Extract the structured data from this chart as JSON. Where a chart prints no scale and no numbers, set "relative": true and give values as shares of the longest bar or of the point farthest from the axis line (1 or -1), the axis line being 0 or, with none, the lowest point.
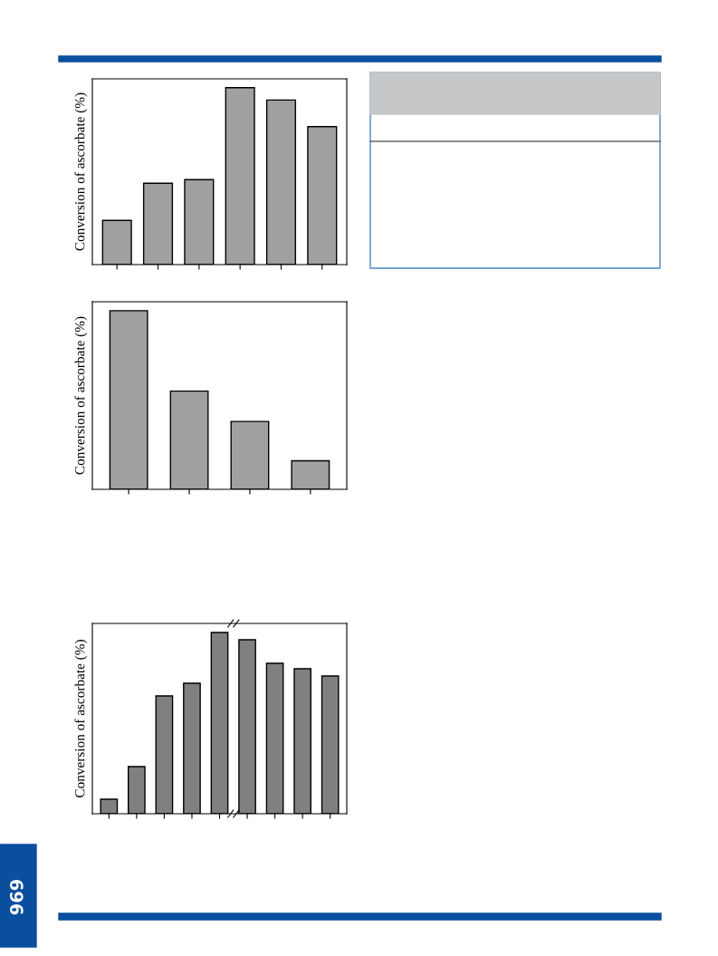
{
  "chart_data": [
    {
      "type": "bar",
      "relative": true,
      "ylabel": "Conversion of ascorbate (%)",
      "categories": [
        null,
        null,
        null,
        null,
        null,
        null
      ],
      "values": [
        0.25,
        0.46,
        0.48,
        1,
        0.93,
        0.78
      ],
      "color": "#a0a0a0",
      "grid": false,
      "annotations": [
        "969"
      ]
    },
    {
      "type": "bar",
      "relative": true,
      "ylabel": "Conversion of ascorbate (%)",
      "categories": [
        null,
        null,
        null,
        null
      ],
      "values": [
        1,
        0.55,
        0.38,
        0.16
      ],
      "color": "#a0a0a0",
      "grid": false
    },
    {
      "type": "bar",
      "relative": true,
      "ylabel": "Conversion of ascorbate (%)",
      "categories": [
        null,
        null,
        null,
        null,
        null,
        null,
        null,
        null,
        null
      ],
      "values": [
        0.08,
        0.26,
        0.65,
        0.72,
        1,
        0.96,
        0.83,
        0.8,
        0.76
      ],
      "color": "#808080",
      "grid": false
    }
  ]
}
